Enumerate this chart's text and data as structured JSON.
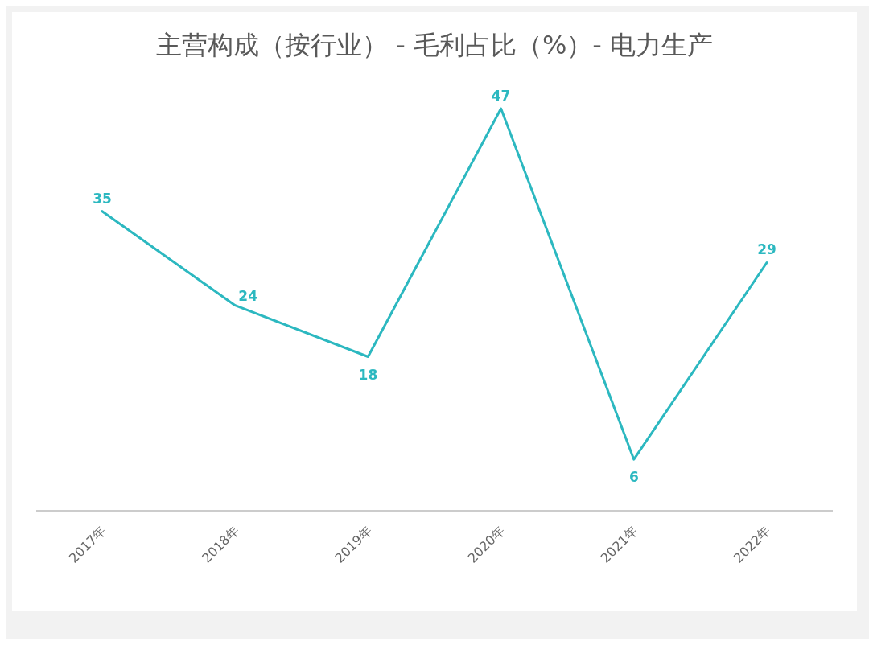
{
  "chart_data": {
    "type": "line",
    "title": "主营构成（按行业） - 毛利占比（%）- 电力生产",
    "categories": [
      "2017年",
      "2018年",
      "2019年",
      "2020年",
      "2021年",
      "2022年"
    ],
    "series": [
      {
        "color": "#2cb8c0",
        "values": [
          35,
          24,
          18,
          47,
          6,
          29
        ]
      }
    ],
    "data_labels": true,
    "marker": "none",
    "legend": false,
    "tick_labels": "x"
  }
}
